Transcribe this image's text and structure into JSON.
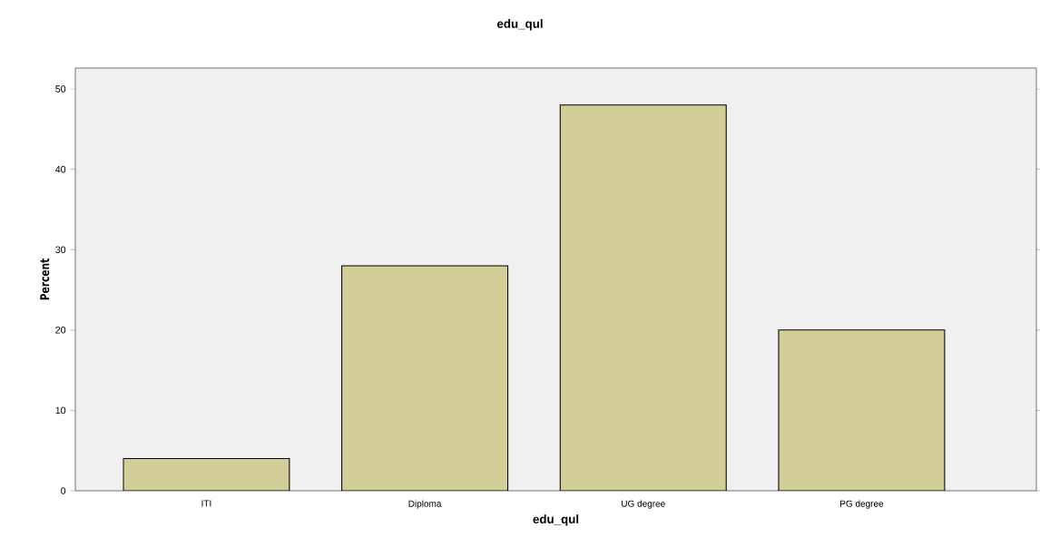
{
  "chart_data": {
    "type": "bar",
    "title": "edu_qul",
    "xlabel": "edu_qul",
    "ylabel": "Percent",
    "categories": [
      "ITI",
      "Diploma",
      "UG degree",
      "PG degree"
    ],
    "values": [
      4,
      28,
      48,
      20
    ],
    "color": "#d3ce97",
    "ylim": [
      0,
      52.6
    ],
    "yticks": [
      0,
      10,
      20,
      30,
      40,
      50
    ],
    "grid": false
  }
}
